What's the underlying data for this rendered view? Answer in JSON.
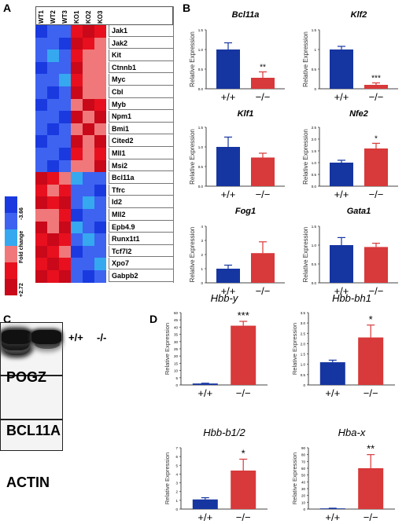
{
  "panels": {
    "a": "A",
    "b": "B",
    "c": "C",
    "d": "D"
  },
  "heatmap": {
    "columns": [
      "WT1",
      "WT2",
      "WT3",
      "KO1",
      "KO2",
      "KO3"
    ],
    "rows": [
      "Jak1",
      "Jak2",
      "Kit",
      "Ctnnb1",
      "Myc",
      "Cbl",
      "Myb",
      "Npm1",
      "Bmi1",
      "Cited2",
      "Mll1",
      "Msi2",
      "Bcl11a",
      "Tfrc",
      "Id2",
      "Mll2",
      "Epb4.9",
      "Runx1t1",
      "Tcf7l2",
      "Xpo7",
      "Gabpb2"
    ],
    "legend_title": "Fold change",
    "legend_min": "-3.66",
    "legend_max": "+2.72",
    "colors": {
      "deep_blue": "#1a3ae0",
      "blue": "#3d63f0",
      "light_blue": "#35a8f0",
      "pink": "#f0787a",
      "red": "#e8101e",
      "dark_red": "#c9081a"
    },
    "cells": [
      [
        "b",
        "b",
        "b",
        "r",
        "r",
        "r"
      ],
      [
        "b",
        "b",
        "b",
        "r",
        "r",
        "p"
      ],
      [
        "b",
        "lb",
        "b",
        "r",
        "p",
        "p"
      ],
      [
        "b",
        "b",
        "b",
        "r",
        "p",
        "p"
      ],
      [
        "b",
        "b",
        "lb",
        "r",
        "p",
        "p"
      ],
      [
        "b",
        "b",
        "b",
        "r",
        "p",
        "p"
      ],
      [
        "b",
        "b",
        "b",
        "p",
        "r",
        "r"
      ],
      [
        "b",
        "b",
        "b",
        "r",
        "p",
        "r"
      ],
      [
        "b",
        "b",
        "b",
        "p",
        "r",
        "p"
      ],
      [
        "b",
        "b",
        "b",
        "r",
        "p",
        "r"
      ],
      [
        "b",
        "b",
        "b",
        "r",
        "p",
        "r"
      ],
      [
        "b",
        "b",
        "b",
        "p",
        "p",
        "r"
      ],
      [
        "r",
        "r",
        "p",
        "lb",
        "b",
        "b"
      ],
      [
        "r",
        "p",
        "r",
        "b",
        "b",
        "b"
      ],
      [
        "r",
        "r",
        "r",
        "b",
        "lb",
        "b"
      ],
      [
        "p",
        "p",
        "r",
        "b",
        "b",
        "b"
      ],
      [
        "r",
        "p",
        "r",
        "lb",
        "b",
        "b"
      ],
      [
        "r",
        "r",
        "r",
        "b",
        "lb",
        "b"
      ],
      [
        "r",
        "r",
        "p",
        "b",
        "b",
        "b"
      ],
      [
        "r",
        "r",
        "r",
        "b",
        "b",
        "lb"
      ],
      [
        "r",
        "r",
        "r",
        "b",
        "b",
        "b"
      ]
    ]
  },
  "western_blot": {
    "lane_labels": [
      "+/+",
      "-/-"
    ],
    "proteins": [
      "POGZ",
      "BCL11A",
      "ACTIN"
    ]
  },
  "chart_data": [
    {
      "type": "bar",
      "title": "Bcl11a",
      "ylabel": "Relative Expression",
      "categories": [
        "+/+",
        "−/−"
      ],
      "values": [
        1.0,
        0.28
      ],
      "errors": [
        0.17,
        0.15
      ],
      "ylim": [
        0,
        1.5
      ],
      "ticks": [
        "0.0",
        "0.5",
        "1.0",
        "1.5"
      ],
      "significance": [
        "",
        "**"
      ]
    },
    {
      "type": "bar",
      "title": "Klf2",
      "ylabel": "Relative Expression",
      "categories": [
        "+/+",
        "−/−"
      ],
      "values": [
        1.0,
        0.1
      ],
      "errors": [
        0.08,
        0.05
      ],
      "ylim": [
        0,
        1.5
      ],
      "ticks": [
        "0",
        "0.5",
        "1",
        "1.5"
      ],
      "significance": [
        "",
        "***"
      ]
    },
    {
      "type": "bar",
      "title": "Klf1",
      "ylabel": "Relative Expression",
      "categories": [
        "+/+",
        "−/−"
      ],
      "values": [
        1.0,
        0.73
      ],
      "errors": [
        0.25,
        0.11
      ],
      "ylim": [
        0,
        1.5
      ],
      "ticks": [
        "0.0",
        "0.5",
        "1.0",
        "1.5"
      ],
      "significance": [
        "",
        ""
      ]
    },
    {
      "type": "bar",
      "title": "Nfe2",
      "ylabel": "Relative Expression",
      "categories": [
        "+/+",
        "−/−"
      ],
      "values": [
        1.0,
        1.6
      ],
      "errors": [
        0.1,
        0.22
      ],
      "ylim": [
        0,
        2.5
      ],
      "ticks": [
        "0.0",
        "0.5",
        "1.0",
        "1.5",
        "2.0",
        "2.5"
      ],
      "significance": [
        "",
        "*"
      ]
    },
    {
      "type": "bar",
      "title": "Fog1",
      "ylabel": "Relative Expression",
      "categories": [
        "+/+",
        "−/−"
      ],
      "values": [
        1.0,
        2.1
      ],
      "errors": [
        0.25,
        0.8
      ],
      "ylim": [
        0,
        4
      ],
      "ticks": [
        "0",
        "1",
        "2",
        "3",
        "4"
      ],
      "significance": [
        "",
        ""
      ]
    },
    {
      "type": "bar",
      "title": "Gata1",
      "ylabel": "Relative Expression",
      "categories": [
        "+/+",
        "−/−"
      ],
      "values": [
        1.0,
        0.95
      ],
      "errors": [
        0.2,
        0.1
      ],
      "ylim": [
        0,
        1.5
      ],
      "ticks": [
        "0.0",
        "0.5",
        "1.0",
        "1.5"
      ],
      "significance": [
        "",
        ""
      ]
    },
    {
      "type": "bar",
      "title": "Hbb-y",
      "ylabel": "Relative Expression",
      "categories": [
        "+/+",
        "−/−"
      ],
      "values": [
        1.0,
        41
      ],
      "errors": [
        0.2,
        3
      ],
      "ylim": [
        0,
        50
      ],
      "ticks": [
        "0",
        "5",
        "10",
        "15",
        "20",
        "25",
        "30",
        "35",
        "40",
        "45",
        "50"
      ],
      "significance": [
        "",
        "***"
      ]
    },
    {
      "type": "bar",
      "title": "Hbb-bh1",
      "ylabel": "Relative Expression",
      "categories": [
        "+/+",
        "−/−"
      ],
      "values": [
        1.1,
        2.3
      ],
      "errors": [
        0.1,
        0.6
      ],
      "ylim": [
        0,
        3.5
      ],
      "ticks": [
        "0",
        "0.5",
        "1.0",
        "1.5",
        "2.0",
        "2.5",
        "3.0",
        "3.5"
      ],
      "significance": [
        "",
        "*"
      ]
    },
    {
      "type": "bar",
      "title": "Hbb-b1/2",
      "ylabel": "Relative Expression",
      "categories": [
        "+/+",
        "−/−"
      ],
      "values": [
        1.1,
        4.4
      ],
      "errors": [
        0.2,
        1.3
      ],
      "ylim": [
        0,
        7
      ],
      "ticks": [
        "0",
        "1",
        "2",
        "3",
        "4",
        "5",
        "6",
        "7"
      ],
      "significance": [
        "",
        "*"
      ]
    },
    {
      "type": "bar",
      "title": "Hba-x",
      "ylabel": "Relative Expression",
      "categories": [
        "+/+",
        "−/−"
      ],
      "values": [
        1.0,
        60
      ],
      "errors": [
        0.3,
        20
      ],
      "ylim": [
        0,
        90
      ],
      "ticks": [
        "0",
        "10",
        "20",
        "30",
        "40",
        "50",
        "60",
        "70",
        "80",
        "90"
      ],
      "significance": [
        "",
        "**"
      ]
    }
  ],
  "bar_colors": {
    "wt": "#1535a0",
    "ko": "#d8393a"
  }
}
